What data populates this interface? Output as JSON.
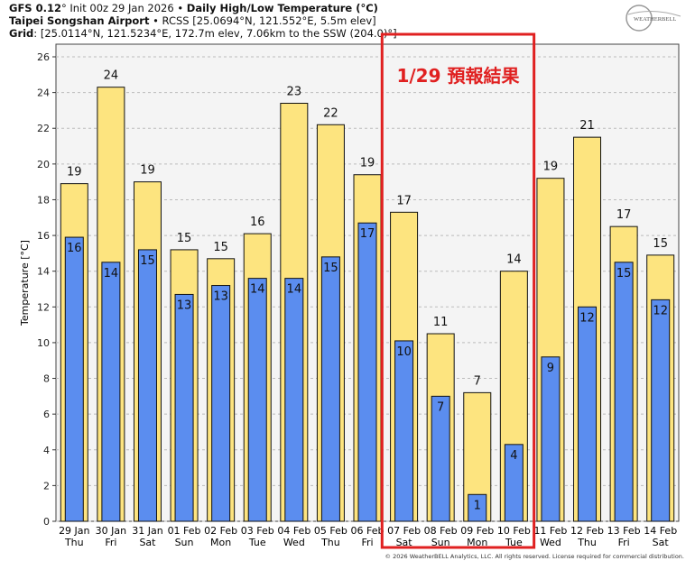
{
  "header": {
    "model": "GFS 0.12",
    "init": "° Init 00z 29 Jan 2026 • ",
    "title": "Daily High/Low Temperature (°C)",
    "station": "Taipei Songshan Airport",
    "station_info": " • RCSS [25.0694°N, 121.552°E, 5.5m elev]",
    "grid_label": "Grid",
    "grid_info": ": [25.0114°N, 121.5234°E, 172.7m elev, 7.06km to the SSW (204.0)°]"
  },
  "logo_text": "WEATHERBELL",
  "copyright": "© 2026 WeatherBELL Analytics, LLC. All rights reserved. License required for commercial distribution.",
  "annotation": {
    "text": "1/29 預報結果",
    "color": "#e02020",
    "covers": [
      "07 Feb",
      "08 Feb",
      "09 Feb",
      "10 Feb"
    ]
  },
  "chart_data": {
    "type": "bar",
    "ylabel": "Temperature [°C]",
    "ylim": [
      0,
      26
    ],
    "yticks": [
      0,
      2,
      4,
      6,
      8,
      10,
      12,
      14,
      16,
      18,
      20,
      22,
      24,
      26
    ],
    "grid": true,
    "categories": [
      "29 Jan",
      "30 Jan",
      "31 Jan",
      "01 Feb",
      "02 Feb",
      "03 Feb",
      "04 Feb",
      "05 Feb",
      "06 Feb",
      "07 Feb",
      "08 Feb",
      "09 Feb",
      "10 Feb",
      "11 Feb",
      "12 Feb",
      "13 Feb",
      "14 Feb"
    ],
    "weekdays": [
      "Thu",
      "Fri",
      "Sat",
      "Sun",
      "Mon",
      "Tue",
      "Wed",
      "Thu",
      "Fri",
      "Sat",
      "Sun",
      "Mon",
      "Tue",
      "Wed",
      "Thu",
      "Fri",
      "Sat"
    ],
    "series": [
      {
        "key": "high",
        "color": "#fde47f",
        "values": [
          18.9,
          24.3,
          19.0,
          15.2,
          14.7,
          16.1,
          23.4,
          22.2,
          19.4,
          17.3,
          10.5,
          7.2,
          14.0,
          19.2,
          21.5,
          16.5,
          14.9
        ],
        "labels": [
          "19",
          "24",
          "19",
          "15",
          "15",
          "16",
          "23",
          "22",
          "19",
          "17",
          "11",
          "7",
          "14",
          "19",
          "21",
          "17",
          "15"
        ]
      },
      {
        "key": "low",
        "color": "#5b8def",
        "values": [
          15.9,
          14.5,
          15.2,
          12.7,
          13.2,
          13.6,
          13.6,
          14.8,
          16.7,
          10.1,
          7.0,
          1.5,
          4.3,
          9.2,
          12.0,
          14.5,
          12.4
        ],
        "labels": [
          "16",
          "14",
          "15",
          "13",
          "13",
          "14",
          "14",
          "15",
          "17",
          "10",
          "7",
          "1",
          "4",
          "9",
          "12",
          "15",
          "12"
        ]
      }
    ]
  }
}
